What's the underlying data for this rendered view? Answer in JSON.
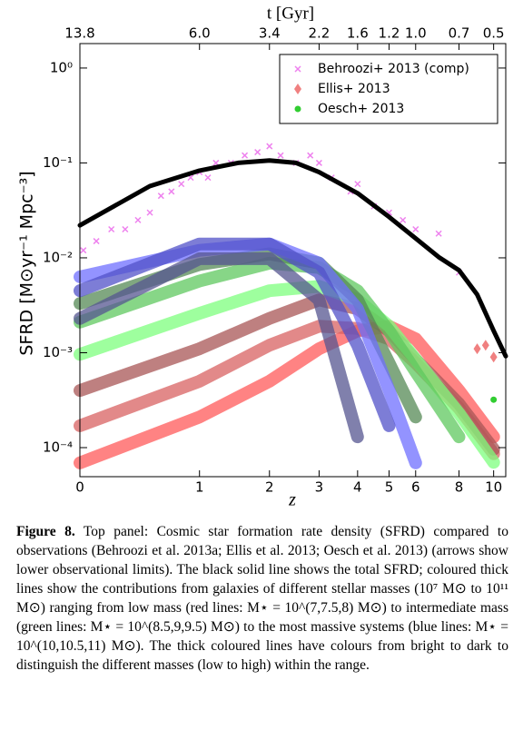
{
  "chart_data": {
    "type": "line",
    "xlabel": "z",
    "ylabel": "SFRD [M⊙yr⁻¹ Mpc⁻³]",
    "xscale": "log1p",
    "yscale": "log",
    "xlim": [
      0,
      10.8
    ],
    "ylim": [
      4.94e-05,
      1.81
    ],
    "xticks": [
      0,
      1,
      2,
      3,
      4,
      5,
      6,
      8,
      10
    ],
    "yticks": [
      {
        "value": 1,
        "label": "10⁰"
      },
      {
        "value": 0.1,
        "label": "10⁻¹"
      },
      {
        "value": 0.01,
        "label": "10⁻²"
      },
      {
        "value": 0.001,
        "label": "10⁻³"
      },
      {
        "value": 0.0001,
        "label": "10⁻⁴"
      }
    ],
    "top_axis": {
      "label": "t [Gyr]",
      "ticks": [
        {
          "value": 0,
          "label": "13.8"
        },
        {
          "value": 1,
          "label": "6.0"
        },
        {
          "value": 2,
          "label": "3.4"
        },
        {
          "value": 3,
          "label": "2.2"
        },
        {
          "value": 4,
          "label": "1.6"
        },
        {
          "value": 5,
          "label": "1.2"
        },
        {
          "value": 6,
          "label": "1.0"
        },
        {
          "value": 8,
          "label": "0.7"
        },
        {
          "value": 10,
          "label": "0.5"
        }
      ]
    },
    "x": [
      0,
      1,
      2,
      3,
      4,
      5,
      6,
      8,
      10
    ],
    "series": [
      {
        "color": "#ff5a5a",
        "values": [
          6.9e-05,
          0.00021,
          0.0005,
          0.0011,
          0.0017,
          0.0019,
          0.0014,
          0.0004,
          0.00013
        ]
      },
      {
        "color": "#d86262",
        "values": [
          0.00017,
          0.0005,
          0.0012,
          0.0019,
          0.0018,
          0.0014,
          0.00078,
          0.00026,
          8.6e-05
        ]
      },
      {
        "color": "#a85656",
        "values": [
          0.0004,
          0.0011,
          0.0023,
          0.0036,
          0.0029,
          0.0017,
          0.00085,
          0.00029,
          9.6e-05
        ]
      },
      {
        "color": "#7dff7d",
        "values": [
          0.00096,
          0.0026,
          0.0045,
          0.005,
          0.0036,
          0.0019,
          0.00085,
          0.00023,
          7e-05
        ]
      },
      {
        "color": "#5fc85f",
        "values": [
          0.0021,
          0.0057,
          0.0088,
          0.0079,
          0.0045,
          0.0017,
          0.00063,
          0.00013,
          null
        ]
      },
      {
        "color": "#558a55",
        "values": [
          0.0033,
          0.0085,
          0.011,
          0.0088,
          0.0036,
          0.00078,
          0.00021,
          null,
          null
        ]
      },
      {
        "color": "#6f6fff",
        "values": [
          0.0063,
          0.012,
          0.014,
          0.0088,
          0.0029,
          0.0004,
          6.9e-05,
          null,
          null
        ]
      },
      {
        "color": "#5252c8",
        "values": [
          0.0045,
          0.014,
          0.014,
          0.007,
          0.0012,
          0.00017,
          null,
          null,
          null
        ]
      },
      {
        "color": "#555590",
        "values": [
          0.0023,
          0.0098,
          0.0098,
          0.0036,
          0.00013,
          null,
          null,
          null,
          null
        ]
      }
    ],
    "total": {
      "color": "#000000",
      "x": [
        0,
        0.5,
        1,
        1.5,
        2,
        2.5,
        3,
        4,
        5,
        6,
        7,
        8,
        9,
        10,
        10.8
      ],
      "values": [
        0.022,
        0.057,
        0.083,
        0.1,
        0.106,
        0.1,
        0.08,
        0.048,
        0.027,
        0.016,
        0.0102,
        0.0074,
        0.0041,
        0.0017,
        0.00092
      ]
    },
    "scatter": [
      {
        "name": "Behroozi+ 2013 (comp)",
        "color": "#ee82ee",
        "marker": "x",
        "x": [
          0.02,
          0.1,
          0.2,
          0.3,
          0.4,
          0.5,
          0.6,
          0.7,
          0.8,
          0.9,
          1.0,
          1.1,
          1.2,
          1.4,
          1.6,
          1.8,
          2.0,
          2.2,
          2.5,
          2.8,
          3.0,
          3.3,
          3.8,
          4.0,
          4.5,
          5.0,
          5.5,
          6.0,
          7.0,
          8.0
        ],
        "y": [
          0.012,
          0.015,
          0.02,
          0.02,
          0.025,
          0.03,
          0.045,
          0.05,
          0.06,
          0.07,
          0.08,
          0.07,
          0.1,
          0.1,
          0.12,
          0.13,
          0.15,
          0.12,
          0.1,
          0.12,
          0.1,
          0.07,
          0.05,
          0.06,
          0.035,
          0.03,
          0.025,
          0.02,
          0.018,
          0.007
        ]
      },
      {
        "name": "Ellis+ 2013",
        "color": "#f08080",
        "marker": "diamond",
        "x": [
          9,
          9.5,
          10
        ],
        "y": [
          0.0011,
          0.0012,
          0.0009
        ]
      },
      {
        "name": "Oesch+ 2013",
        "color": "#32cd32",
        "marker": "circle",
        "x": [
          10
        ],
        "y": [
          0.00032
        ]
      }
    ]
  },
  "caption": {
    "label": "Figure 8.",
    "text": "Top panel: Cosmic star formation rate density (SFRD) compared to observations (Behroozi et al. 2013a; Ellis et al. 2013; Oesch et al. 2013) (arrows show lower observational limits). The black solid line shows the total SFRD; coloured thick lines show the contributions from galaxies of different stellar masses (10⁷ M⊙ to 10¹¹ M⊙) ranging from low mass (red lines: M⋆ = 10^(7,7.5,8) M⊙) to intermediate mass (green lines: M⋆ = 10^(8.5,9,9.5) M⊙) to the most massive systems (blue lines: M⋆ = 10^(10,10.5,11) M⊙). The thick coloured lines have colours from bright to dark to distinguish the different masses (low to high) within the range."
  }
}
